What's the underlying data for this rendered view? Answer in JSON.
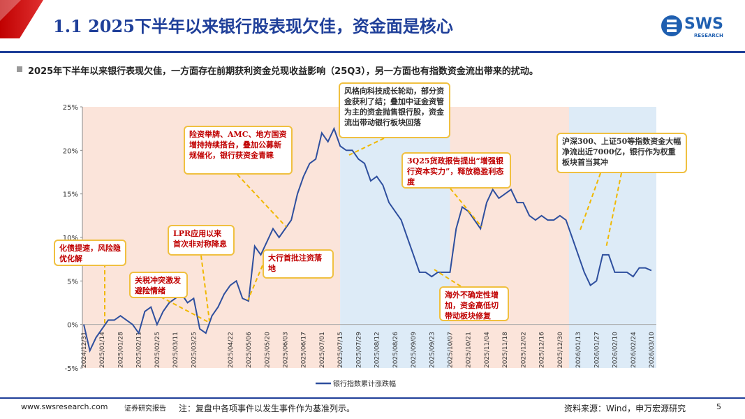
{
  "header": {
    "title": "1.1 2025下半年以来银行股表现欠佳，资金面是核心",
    "logo": "SWS",
    "logo_sub": "RESEARCH"
  },
  "bullet": "2025年下半年以来银行表现欠佳，一方面存在前期获利资金兑现收益影响（25Q3），另一方面也有指数资金流出带来的扰动。",
  "chart_data": {
    "type": "line",
    "categories": [
      "2024/12/31",
      null,
      null,
      "2025/01/14",
      null,
      null,
      "2025/01/28",
      null,
      null,
      "2025/02/11",
      null,
      null,
      "2025/02/25",
      null,
      null,
      "2025/03/11",
      null,
      null,
      "2025/03/25",
      null,
      null,
      null,
      null,
      null,
      "2025/04/22",
      null,
      null,
      "2025/05/06",
      null,
      null,
      "2025/05/20",
      null,
      null,
      "2025/06/03",
      null,
      null,
      "2025/06/17",
      null,
      null,
      "2025/07/01",
      null,
      null,
      "2025/07/15",
      null,
      null,
      "2025/07/29",
      null,
      null,
      "2025/08/12",
      null,
      null,
      "2025/08/26",
      null,
      null,
      "2025/09/09",
      null,
      null,
      "2025/09/23",
      null,
      null,
      "2025/10/07",
      null,
      null,
      "2025/10/21",
      null,
      null,
      "2025/11/04",
      null,
      null,
      "2025/11/18",
      null,
      null,
      "2025/12/02",
      null,
      null,
      "2025/12/16",
      null,
      null,
      "2025/12/30",
      null,
      null,
      "2026/01/13",
      null,
      null,
      "2026/01/27",
      null,
      null,
      "2026/02/10",
      null,
      null,
      "2026/02/24",
      null,
      null,
      "2026/03/10"
    ],
    "series": [
      {
        "name": "银行指数累计涨跌幅",
        "color": "#2e4f9e",
        "values": [
          0,
          -3,
          -1.5,
          -0.5,
          0.5,
          0.5,
          1,
          0.5,
          0,
          -1,
          1.5,
          2,
          0,
          1.5,
          2.5,
          3,
          3.5,
          2.5,
          3,
          -0.5,
          -1,
          1,
          2,
          3.5,
          4.5,
          5,
          3,
          2.7,
          9,
          8,
          9.5,
          11,
          10,
          11,
          12,
          15,
          17,
          18.5,
          19,
          22,
          21,
          22.5,
          20.5,
          20,
          20,
          19,
          18.5,
          16.5,
          17,
          16,
          14,
          13,
          12,
          10,
          8,
          6,
          6,
          5.5,
          6,
          6,
          6,
          11,
          13.5,
          13,
          12,
          11,
          14,
          15.5,
          14.5,
          15,
          15.5,
          14,
          14,
          12.5,
          12,
          12.5,
          12,
          12,
          12.5,
          12,
          10,
          8,
          6,
          4.5,
          5,
          8,
          8,
          6,
          6,
          6,
          5.5,
          6.5,
          6.5,
          6.2
        ]
      }
    ],
    "ylim": [
      -5,
      25
    ],
    "yticks": [
      {
        "value": -5,
        "label": "-5%"
      },
      {
        "value": 0,
        "label": "0%"
      },
      {
        "value": 5,
        "label": "5%"
      },
      {
        "value": 10,
        "label": "10%"
      },
      {
        "value": 15,
        "label": "15%"
      },
      {
        "value": 20,
        "label": "20%"
      },
      {
        "value": 25,
        "label": "25%"
      }
    ],
    "annotations": [
      {
        "text": "化债提速，风险隐优化解",
        "color": "#c00000"
      },
      {
        "text": "关税冲突激发避险情绪",
        "color": "#c00000"
      },
      {
        "text": "LPR应用以来首次非对称降息",
        "color": "#c00000"
      },
      {
        "text": "险资举牌、AMC、地方国资增持持续搭台，叠加公募新规催化，银行获资金青睐",
        "color": "#c00000"
      },
      {
        "text": "大行首批注资落地",
        "color": "#c00000"
      },
      {
        "text": "风格向科技成长轮动，部分资金获利了结；叠加中证金资管为主的资金抛售银行股，资金流出带动银行板块回落",
        "color": "#333333"
      },
      {
        "text": "3Q25货政报告提出“增强银行资本实力”，释放稳盈利态度",
        "color": "#c00000"
      },
      {
        "text": "海外不确定性增加，资金高低切带动板块修复",
        "color": "#c00000"
      },
      {
        "text": "沪深300、上证50等指数资金大幅净流出近7000亿，银行作为权重板块首当其冲",
        "color": "#333333"
      }
    ]
  },
  "footer": {
    "site": "www.swsresearch.com",
    "tag": "证券研究报告",
    "note": "注：复盘中各项事件以发生事件作为基准列示。",
    "source": "资料来源：Wind，申万宏源研究",
    "page": "5"
  }
}
